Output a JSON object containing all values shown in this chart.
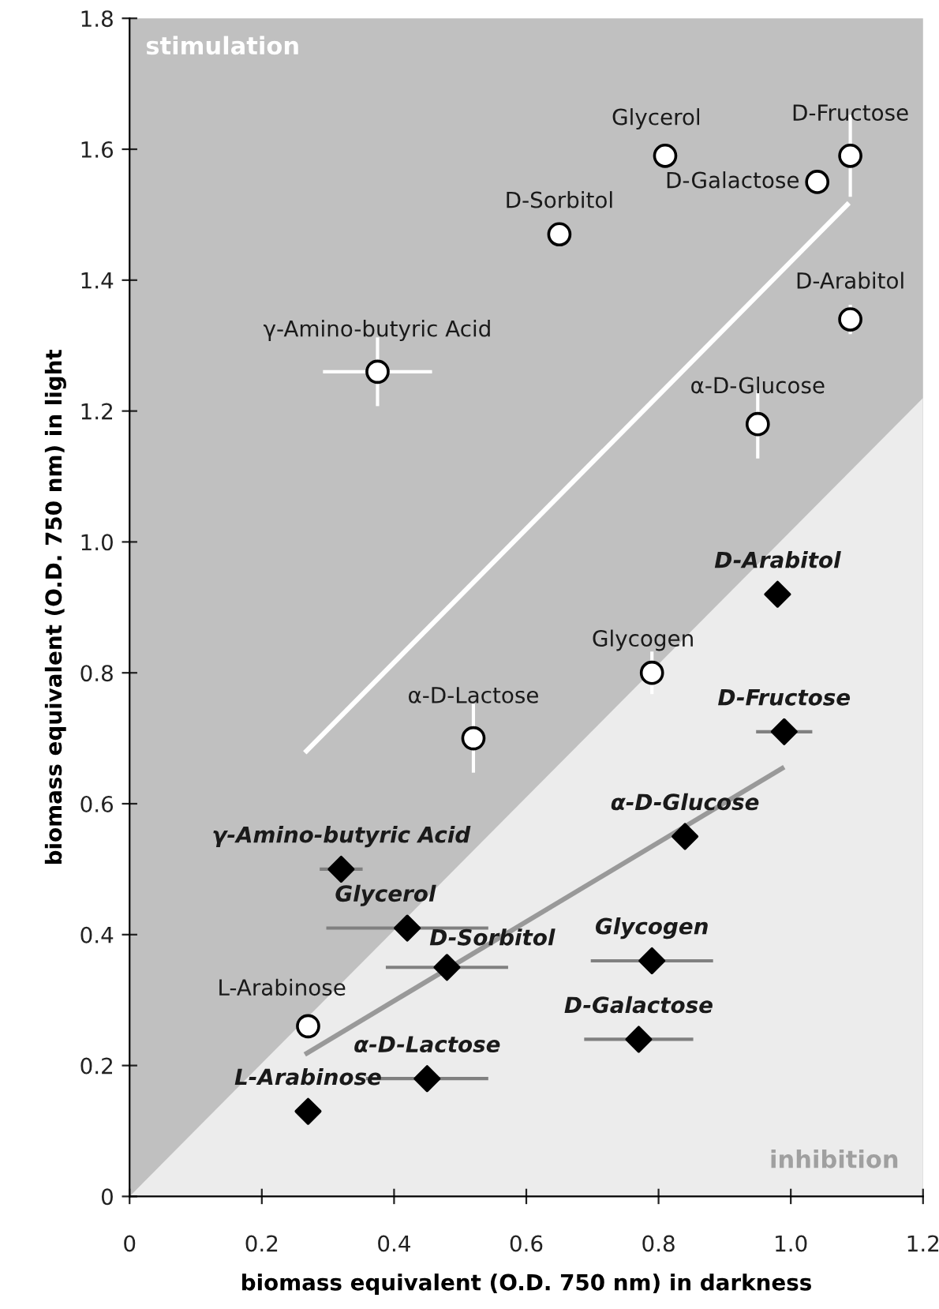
{
  "chart_data": {
    "type": "scatter",
    "xlabel": "biomass equivalent (O.D. 750 nm) in darkness",
    "ylabel": "biomass equivalent (O.D. 750 nm) in light",
    "xlim": [
      0,
      1.2
    ],
    "ylim": [
      0,
      1.8
    ],
    "xticks": [
      0,
      0.2,
      0.4,
      0.6,
      0.8,
      {
        "value": 1,
        "label": "1.0"
      },
      1.2
    ],
    "yticks": [
      0,
      0.2,
      0.4,
      0.6,
      0.8,
      {
        "value": 1,
        "label": "1.0"
      },
      1.2,
      1.4,
      1.6,
      1.8
    ],
    "grid": false,
    "annotations": [
      "stimulation",
      "inhibition"
    ],
    "series": [
      {
        "type": "area",
        "color": "#ececec",
        "x": [
          0,
          1.2
        ],
        "values": [
          0,
          1.22
        ]
      },
      {
        "type": "line",
        "color": "#ffffff",
        "x": [
          0.265,
          1.088
        ],
        "values": [
          0.678,
          1.518
        ]
      },
      {
        "type": "line",
        "color": "#999999",
        "x": [
          0.265,
          0.99
        ],
        "values": [
          0.217,
          0.656
        ]
      },
      {
        "type": "scatter",
        "marker": "circle",
        "color": "#ffffff",
        "x": [
          0.375,
          0.65,
          0.81,
          1.04,
          1.09,
          1.09,
          0.95,
          0.79,
          0.52,
          0.27
        ],
        "values": [
          1.26,
          1.47,
          1.59,
          1.55,
          1.59,
          1.34,
          1.18,
          0.8,
          0.7,
          0.26
        ],
        "errors": [
          0.05,
          null,
          null,
          null,
          0.06,
          0.02,
          0.05,
          0.03,
          0.05,
          null
        ],
        "xerrors": [
          0.08,
          null,
          null,
          null,
          null,
          null,
          null,
          null,
          null,
          null
        ],
        "value_labels": [
          "γ-Amino-butyric Acid",
          "D-Sorbitol",
          "Glycerol",
          "D-Galactose",
          "D-Fructose",
          "D-Arabitol",
          "α-D-Glucose",
          "Glycogen",
          "α-D-Lactose",
          "L-Arabinose"
        ]
      },
      {
        "type": "scatter",
        "marker": "diamond",
        "color": "#000000",
        "x": [
          0.32,
          0.42,
          0.48,
          0.79,
          0.77,
          0.45,
          0.27,
          0.84,
          0.98,
          0.99
        ],
        "values": [
          0.5,
          0.41,
          0.35,
          0.36,
          0.24,
          0.18,
          0.13,
          0.55,
          0.92,
          0.71
        ],
        "xerrors": [
          0.03,
          0.12,
          0.09,
          0.09,
          0.08,
          0.09,
          null,
          null,
          null,
          0.04
        ],
        "value_labels": [
          "γ-Amino-butyric Acid",
          "Glycerol",
          "D-Sorbitol",
          "Glycogen",
          "D-Galactose",
          "α-D-Lactose",
          "L-Arabinose",
          "α-D-Glucose",
          "D-Arabitol",
          "D-Fructose"
        ]
      }
    ]
  }
}
